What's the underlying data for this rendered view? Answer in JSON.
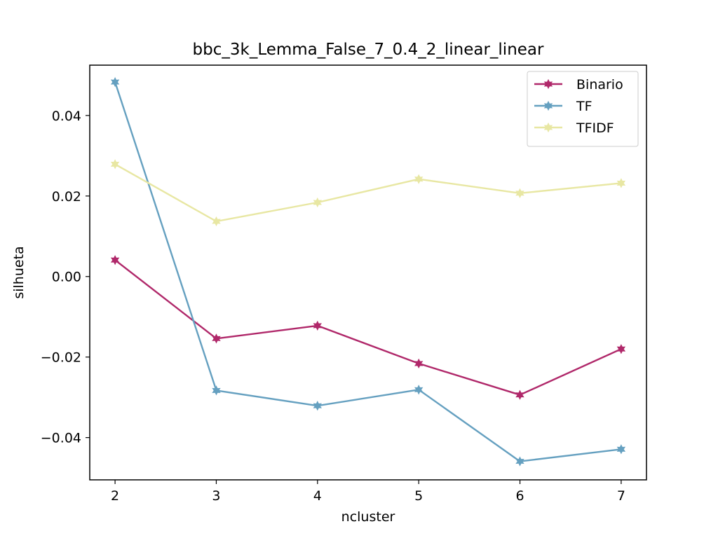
{
  "chart_data": {
    "type": "line",
    "title": "bbc_3k_Lemma_False_7_0.4_2_linear_linear",
    "xlabel": "ncluster",
    "ylabel": "silhueta",
    "x": [
      2,
      3,
      4,
      5,
      6,
      7
    ],
    "xticks": [
      "2",
      "3",
      "4",
      "5",
      "6",
      "7"
    ],
    "yticks": [
      {
        "value": -0.04,
        "label": "−0.04"
      },
      {
        "value": -0.02,
        "label": "−0.02"
      },
      {
        "value": 0.0,
        "label": "0.00"
      },
      {
        "value": 0.02,
        "label": "0.02"
      },
      {
        "value": 0.04,
        "label": "0.04"
      }
    ],
    "xlim": [
      1.75,
      7.25
    ],
    "ylim": [
      -0.0505,
      0.0525
    ],
    "grid": false,
    "legend_position": "top-right",
    "series": [
      {
        "name": "Binario",
        "color": "#b0286a",
        "values": [
          0.0041,
          -0.0154,
          -0.0122,
          -0.0216,
          -0.0294,
          -0.018
        ]
      },
      {
        "name": "TF",
        "color": "#65a0c0",
        "values": [
          0.0483,
          -0.0283,
          -0.0321,
          -0.0281,
          -0.0459,
          -0.0429
        ]
      },
      {
        "name": "TFIDF",
        "color": "#e8e7a3",
        "values": [
          0.0279,
          0.0137,
          0.0184,
          0.0242,
          0.0207,
          0.0232
        ]
      }
    ]
  }
}
